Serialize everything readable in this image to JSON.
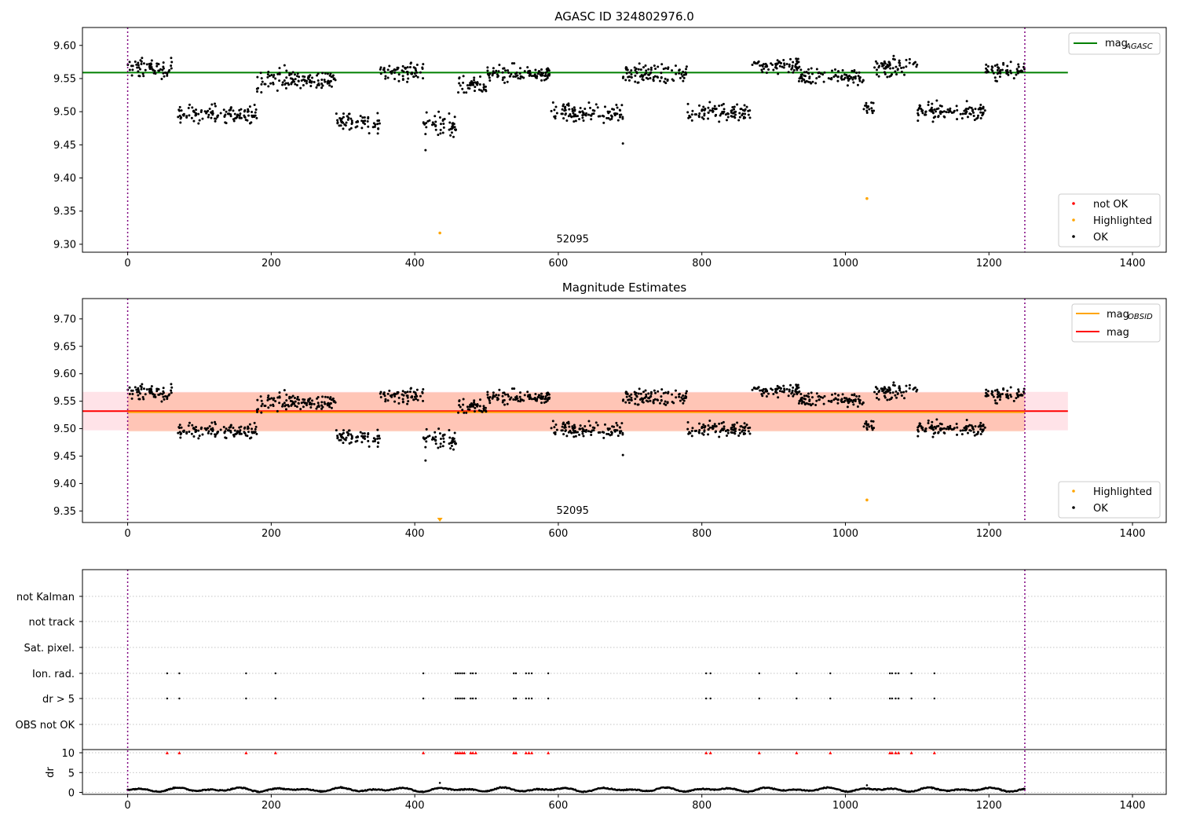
{
  "chart_data": [
    {
      "type": "scatter",
      "title": "AGASC ID 324802976.0",
      "xlim": [
        -63,
        1447
      ],
      "ylim": [
        9.288,
        9.627
      ],
      "xticks": [
        0,
        200,
        400,
        600,
        800,
        1000,
        1200,
        1400
      ],
      "yticks": [
        9.3,
        9.35,
        9.4,
        9.45,
        9.5,
        9.55,
        9.6
      ],
      "vlines": [
        0,
        1250
      ],
      "reference_line": {
        "name": "mag_AGASC",
        "y": 9.559,
        "x_range": [
          -63,
          1310
        ],
        "color": "#008000"
      },
      "annotation": {
        "text": "52095",
        "x": 620,
        "y": 9.303
      },
      "highlighted_points": [
        {
          "x": 435,
          "y": 9.317
        },
        {
          "x": 1030,
          "y": 9.369
        }
      ],
      "legend_upper": {
        "placement": "top-right",
        "entries": [
          {
            "label": "mag",
            "sub": "AGASC",
            "color": "#008000"
          }
        ]
      },
      "legend_lower": {
        "placement": "bottom-right",
        "entries": [
          {
            "label": "not OK",
            "color": "#ff0000"
          },
          {
            "label": "Highlighted",
            "color": "#ffa500"
          },
          {
            "label": "OK",
            "color": "#000000"
          }
        ]
      }
    },
    {
      "type": "scatter",
      "title": "Magnitude Estimates",
      "xlim": [
        -63,
        1447
      ],
      "ylim": [
        9.329,
        9.737
      ],
      "xticks": [
        0,
        200,
        400,
        600,
        800,
        1000,
        1200,
        1400
      ],
      "yticks": [
        9.35,
        9.4,
        9.45,
        9.5,
        9.55,
        9.6,
        9.65,
        9.7
      ],
      "vlines": [
        0,
        1250
      ],
      "lines": [
        {
          "name": "mag_OBSID",
          "y": 9.53,
          "x_range": [
            0,
            1250
          ],
          "color": "#ffa500",
          "band": [
            9.495,
            9.566
          ],
          "band_color": "#ffa07a"
        },
        {
          "name": "mag",
          "y": 9.532,
          "x_range": [
            -63,
            1310
          ],
          "color": "#ff0000",
          "band": [
            9.497,
            9.567
          ],
          "band_color": "#ffc0cb"
        }
      ],
      "annotation": {
        "text": "52095",
        "x": 620,
        "y": 9.345
      },
      "highlighted_points": [
        {
          "x": 1030,
          "y": 9.37
        }
      ],
      "out_of_range_marker": {
        "x": 435,
        "color": "#ffa500"
      },
      "legend_upper": {
        "placement": "top-right",
        "entries": [
          {
            "label": "mag",
            "sub": "OBSID",
            "color": "#ffa500"
          },
          {
            "label": "mag",
            "sub": "",
            "color": "#ff0000"
          }
        ]
      },
      "legend_lower": {
        "placement": "bottom-right",
        "entries": [
          {
            "label": "Highlighted",
            "color": "#ffa500"
          },
          {
            "label": "OK",
            "color": "#000000"
          }
        ]
      }
    },
    {
      "type": "scatter",
      "title": "",
      "xlim": [
        -63,
        1447
      ],
      "xticks": [
        0,
        200,
        400,
        600,
        800,
        1000,
        1200,
        1400
      ],
      "vlines": [
        0,
        1250
      ],
      "flag_categories": [
        "not Kalman",
        "not track",
        "Sat. pixel.",
        "Ion. rad.",
        "dr > 5",
        "OBS not OK"
      ],
      "flag_events_x": [
        55,
        72,
        165,
        206,
        412,
        457,
        460,
        463,
        466,
        469,
        478,
        481,
        485,
        538,
        541,
        555,
        559,
        563,
        586,
        806,
        812,
        880,
        932,
        979,
        1062,
        1065,
        1070,
        1074,
        1092,
        1124
      ],
      "dr_ylim": [
        -0.5,
        10.8
      ],
      "dr_yticks": [
        0,
        5,
        10
      ],
      "dr_ylabel": "dr",
      "dr_red_marker_y": 10
    }
  ]
}
